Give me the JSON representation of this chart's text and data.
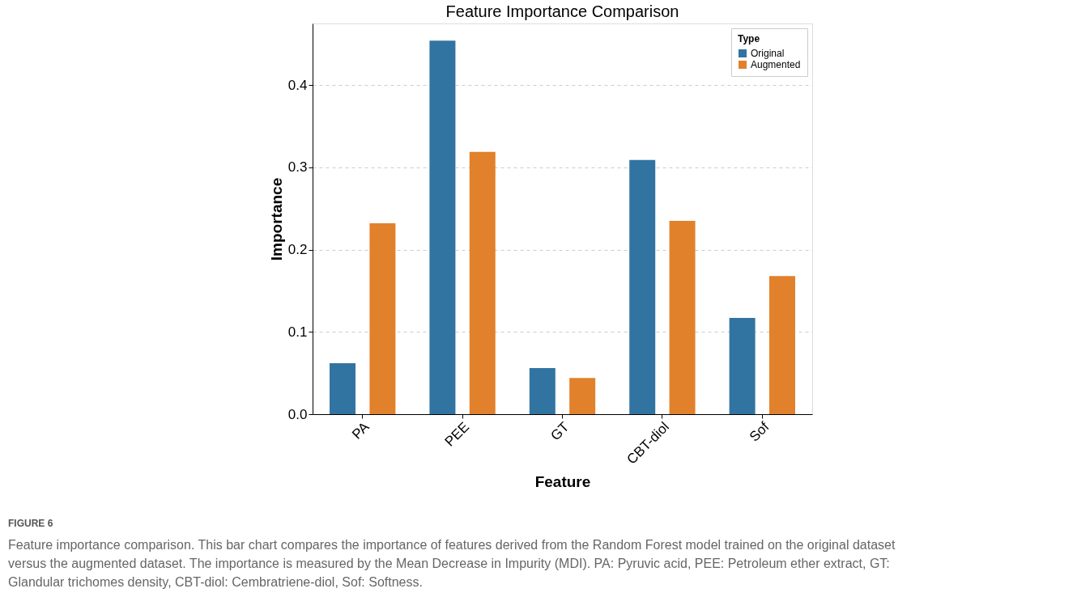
{
  "chart_data": {
    "type": "bar",
    "title": "Feature Importance Comparison",
    "xlabel": "Feature",
    "ylabel": "Importance",
    "legend_title": "Type",
    "categories": [
      "PA",
      "PEE",
      "GT",
      "CBT-diol",
      "Sof"
    ],
    "series": [
      {
        "name": "Original",
        "color": "#3274a1",
        "values": [
          0.062,
          0.454,
          0.056,
          0.309,
          0.117
        ]
      },
      {
        "name": "Augmented",
        "color": "#e1812c",
        "values": [
          0.232,
          0.319,
          0.044,
          0.235,
          0.168
        ]
      }
    ],
    "ylim": [
      0,
      0.475
    ],
    "yticks": [
      {
        "value": 0,
        "label": "0.0"
      },
      0.1,
      0.2,
      0.3,
      0.4
    ],
    "grid": "y",
    "legend": "top right",
    "annotations": [
      "FIGURE 6",
      "Feature importance comparison. This bar chart compares the importance of features derived from the Random Forest model trained on the original dataset versus the augmented dataset. The importance is measured by the Mean Decrease in Impurity (MDI). PA: Pyruvic acid, PEE: Petroleum ether extract, GT: Glandular trichomes density, CBT-diol: Cembratriene-diol, Sof: Softness."
    ]
  }
}
